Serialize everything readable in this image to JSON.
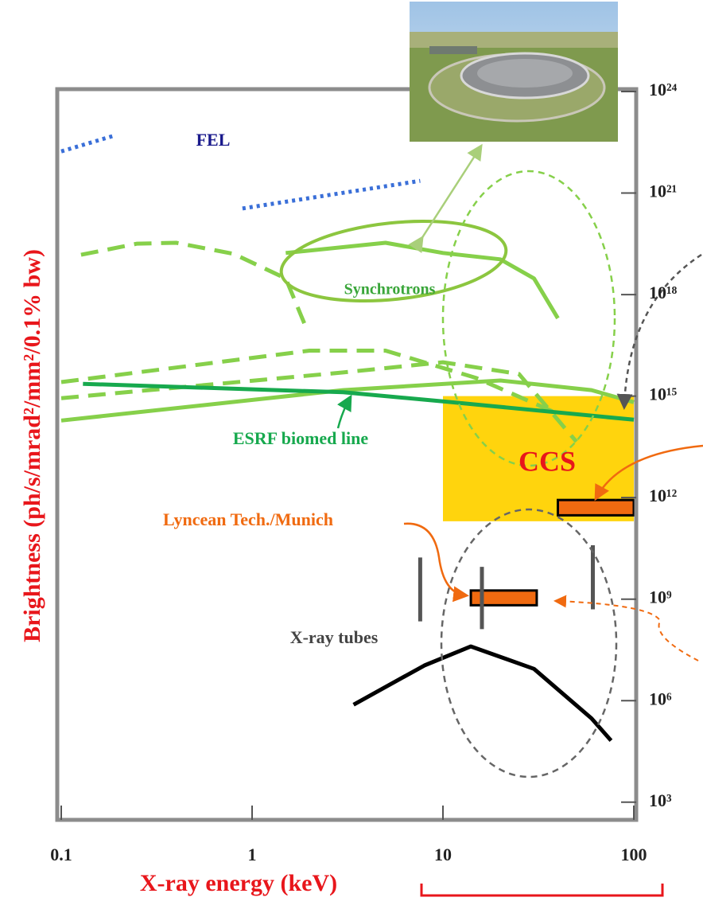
{
  "chart_data": {
    "type": "line",
    "x_label": "X-ray energy (keV)",
    "y_label": "Brightness (ph/s/mrad²/mm²/0.1% bw)",
    "x_log": true,
    "y_log": true,
    "xlim": [
      0.1,
      100
    ],
    "xticks": [
      0.1,
      1,
      10,
      100
    ],
    "ylim": [
      300,
      1e+24
    ],
    "yticks": [
      {
        "value": 1000.0,
        "label": "10³"
      },
      {
        "value": 1000000.0,
        "label": "10⁶"
      },
      {
        "value": 1000000000.0,
        "label": "10⁹"
      },
      {
        "value": 1000000000000.0,
        "label": "10¹²"
      },
      {
        "value": 1000000000000000.0,
        "label": "10¹⁵"
      },
      {
        "value": 1e+18,
        "label": "10¹⁸"
      },
      {
        "value": 1e+21,
        "label": "10²¹"
      },
      {
        "value": 1e+24,
        "label": "10²⁴"
      }
    ],
    "regions": [
      {
        "color": "#ffd200",
        "x": [
          10,
          100
        ],
        "y": [
          200000000000.0,
          1000000000000000.0
        ]
      },
      {
        "color": "#f06a10",
        "x": [
          40,
          100
        ],
        "y": [
          300000000000.0,
          850000000000.0
        ]
      },
      {
        "color": "#f06a10",
        "x": [
          14,
          31
        ],
        "y": [
          660000000.0,
          1800000000.0
        ]
      }
    ],
    "ranges": [
      {
        "color": "#555555",
        "x": 7.6,
        "y": [
          220000000.0,
          17000000000.0
        ]
      },
      {
        "color": "#555555",
        "x": 16,
        "y": [
          130000000.0,
          9000000000.0
        ]
      },
      {
        "color": "#555555",
        "x": 61,
        "y": [
          500000000.0,
          39000000000.0
        ]
      }
    ],
    "series": [
      {
        "color": "#3a6fd8",
        "style": "dotted",
        "x": [
          0.1,
          0.19,
          null,
          0.89,
          7.6
        ],
        "values": [
          1.7e+22,
          5e+22,
          null,
          3.5e+20,
          2.3e+21
        ]
      },
      {
        "color": "#86d04a",
        "style": "dashed",
        "x": [
          0.127,
          0.25,
          0.4,
          0.8,
          1.5,
          1.9
        ],
        "values": [
          1.5e+19,
          3.2e+19,
          3.4e+19,
          1.6e+19,
          3e+18,
          1.2e+17
        ]
      },
      {
        "color": "#86d04a",
        "style": "solid",
        "x": [
          1.5,
          5,
          10,
          20,
          30,
          40
        ],
        "values": [
          1.7e+19,
          3.4e+19,
          1.7e+19,
          1.1e+19,
          3e+18,
          2e+17
        ]
      },
      {
        "color": "#86d04a",
        "style": "dashed",
        "x": [
          0.1,
          2,
          5,
          15,
          40
        ],
        "values": [
          2600000000000000.0,
          2.2e+16,
          2.2e+16,
          3400000000000000.0,
          300000000000000.0
        ]
      },
      {
        "color": "#86d04a",
        "style": "dashed",
        "x": [
          0.1,
          3,
          10,
          25,
          50
        ],
        "values": [
          870000000000000.0,
          5000000000000000.0,
          1e+16,
          4500000000000000.0,
          45000000000000.0
        ]
      },
      {
        "color": "#86d04a",
        "style": "solid",
        "x": [
          0.1,
          3,
          20,
          60,
          100
        ],
        "values": [
          190000000000000.0,
          1500000000000000.0,
          2900000000000000.0,
          1500000000000000.0,
          660000000000000.0
        ]
      },
      {
        "color": "#17a94e",
        "style": "solid",
        "x": [
          0.13,
          3,
          10,
          100
        ],
        "values": [
          2300000000000000.0,
          1300000000000000.0,
          700000000000000.0,
          200000000000000.0
        ]
      },
      {
        "color": "#000000",
        "style": "solid",
        "x": [
          3.4,
          8,
          14,
          30,
          60,
          76
        ],
        "values": [
          760000.0,
          11000000.0,
          40000000.0,
          8700000.0,
          300000.0,
          66000.0
        ]
      }
    ],
    "annotations": [
      {
        "text": "FEL",
        "color": "#1a1a8c"
      },
      {
        "text": "Synchrotrons",
        "color": "#3aa63a"
      },
      {
        "text": "ESRF biomed line",
        "color": "#17a94e"
      },
      {
        "text": "CCS",
        "color": "#e8161b"
      },
      {
        "text": "Lyncean Tech./Munich",
        "color": "#f06a10"
      },
      {
        "text": "X-ray tubes",
        "color": "#444444"
      }
    ]
  }
}
